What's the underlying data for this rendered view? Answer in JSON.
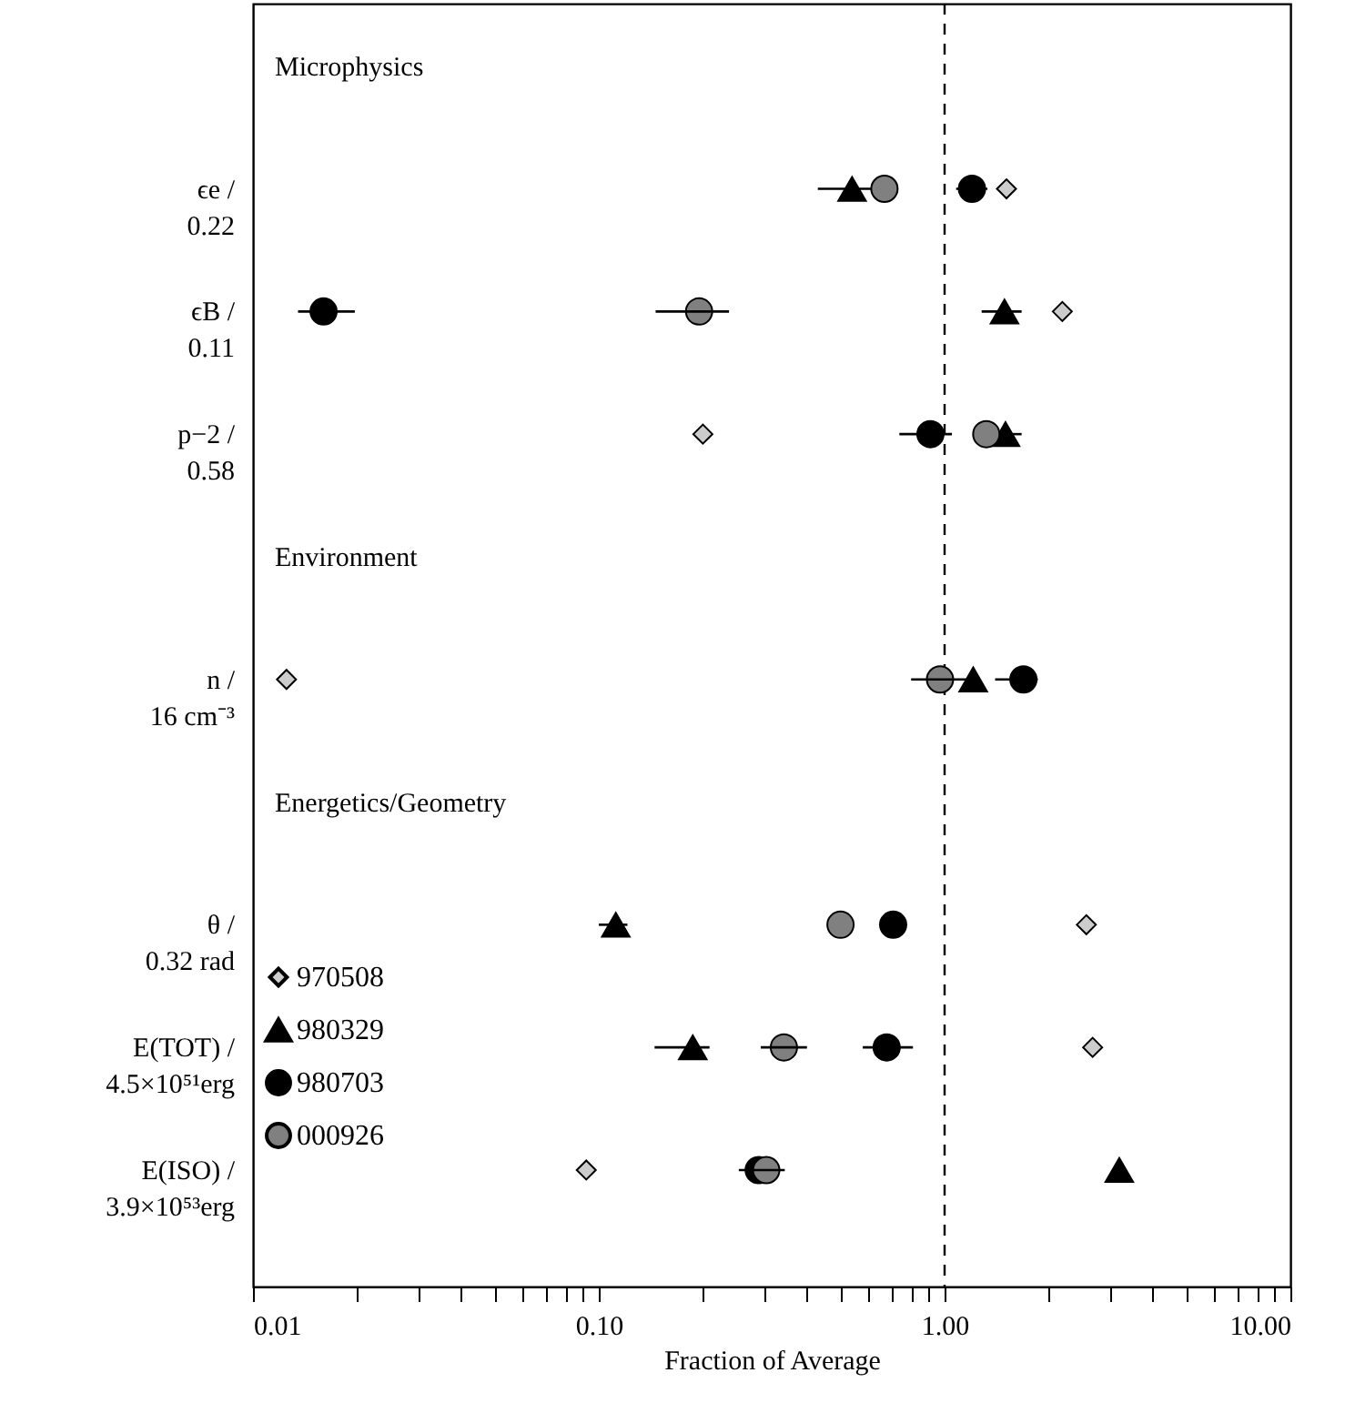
{
  "chart_data": {
    "type": "scatter",
    "orientation": "horizontal",
    "log": "x",
    "grid": false,
    "legend": "bottom left",
    "xlabel": "Fraction of Average",
    "categories": [
      "ϵe /\n0.22",
      "ϵB /\n0.11",
      "p−2 /\n0.58",
      "n /\n16 cm⁻³",
      "θ /\n0.32 rad",
      "E(TOT) /\n4.5×10⁵¹erg",
      "E(ISO) /\n3.9×10⁵³erg"
    ],
    "annotations": [
      "Microphysics",
      "Environment",
      "Energetics/Geometry"
    ],
    "xlim": [
      0.01,
      10
    ],
    "xticks": [
      {
        "value": 0.01,
        "label": "0.01"
      },
      {
        "value": 0.02,
        "label": null
      },
      {
        "value": 0.03,
        "label": null
      },
      {
        "value": 0.04,
        "label": null
      },
      {
        "value": 0.05,
        "label": null
      },
      {
        "value": 0.06,
        "label": null
      },
      {
        "value": 0.07,
        "label": null
      },
      {
        "value": 0.08,
        "label": null
      },
      {
        "value": 0.09,
        "label": null
      },
      {
        "value": 0.1,
        "label": "0.10"
      },
      {
        "value": 0.2,
        "label": null
      },
      {
        "value": 0.3,
        "label": null
      },
      {
        "value": 0.4,
        "label": null
      },
      {
        "value": 0.5,
        "label": null
      },
      {
        "value": 0.6,
        "label": null
      },
      {
        "value": 0.7,
        "label": null
      },
      {
        "value": 0.8,
        "label": null
      },
      {
        "value": 0.9,
        "label": null
      },
      {
        "value": 1,
        "label": "1.00"
      },
      {
        "value": 2,
        "label": null
      },
      {
        "value": 3,
        "label": null
      },
      {
        "value": 4,
        "label": null
      },
      {
        "value": 5,
        "label": null
      },
      {
        "value": 6,
        "label": null
      },
      {
        "value": 7,
        "label": null
      },
      {
        "value": 8,
        "label": null
      },
      {
        "value": 9,
        "label": null
      },
      {
        "value": 10,
        "label": "10.00"
      }
    ],
    "ref_lines": [
      {
        "axis": "x",
        "value": 1,
        "line_style": "dashed",
        "color": "#000000"
      }
    ],
    "series": [
      {
        "name": "970508",
        "color": "#cccccc",
        "marker": "diamond",
        "values": [
          1.51,
          2.19,
          0.2,
          0.0125,
          2.57,
          2.68,
          0.092
        ]
      },
      {
        "name": "980329",
        "color": "#000000",
        "marker": "triangle",
        "values": [
          0.54,
          1.49,
          1.5,
          1.21,
          0.112,
          0.187,
          3.2
        ],
        "errors": [
          [
            0.43,
            0.63
          ],
          [
            1.28,
            1.67
          ],
          [
            1.5,
            1.67
          ],
          null,
          [
            0.1,
            0.121
          ],
          [
            0.145,
            0.209
          ],
          null
        ]
      },
      {
        "name": "980703",
        "color": "#000000",
        "marker": "circle",
        "values": [
          1.2,
          0.016,
          0.91,
          1.69,
          0.71,
          0.68,
          0.29
        ],
        "errors": [
          [
            1.08,
            1.33
          ],
          [
            0.0135,
            0.0197
          ],
          [
            0.74,
            1.05
          ],
          [
            1.4,
            1.86
          ],
          null,
          [
            0.58,
            0.81
          ],
          null
        ]
      },
      {
        "name": "000926",
        "color": "#808080",
        "marker": "circle",
        "values": [
          0.67,
          0.195,
          1.32,
          0.97,
          0.5,
          0.343,
          0.305
        ],
        "errors": [
          null,
          [
            0.146,
            0.238
          ],
          null,
          [
            0.8,
            1.2
          ],
          null,
          [
            0.294,
            0.4
          ],
          [
            0.254,
            0.345
          ]
        ]
      }
    ]
  }
}
